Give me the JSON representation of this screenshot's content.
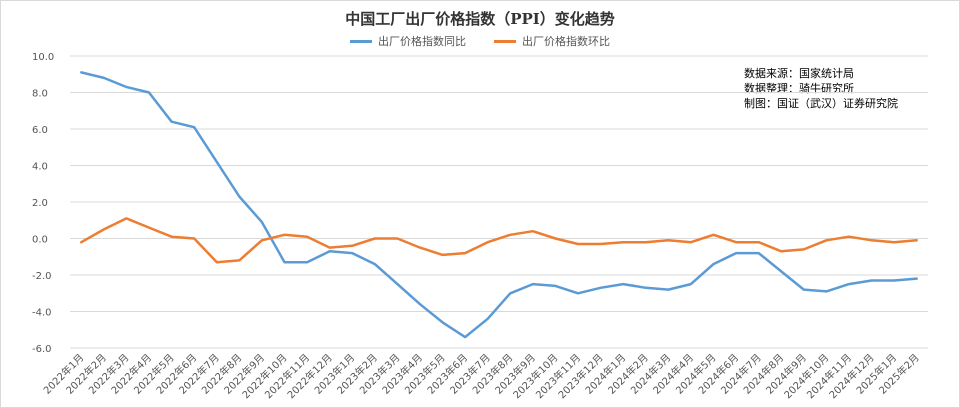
{
  "chart_data": {
    "type": "line",
    "title": "中国工厂出厂价格指数（PPI）变化趋势",
    "xlabel": "",
    "ylabel": "",
    "ylim": [
      -6.0,
      10.0
    ],
    "yticks": [
      "10.0",
      "8.0",
      "6.0",
      "4.0",
      "2.0",
      "0.0",
      "-2.0",
      "-4.0",
      "-6.0"
    ],
    "grid": true,
    "legend": "top-center",
    "categories": [
      "2022年1月",
      "2022年2月",
      "2022年3月",
      "2022年4月",
      "2022年5月",
      "2022年6月",
      "2022年7月",
      "2022年8月",
      "2022年9月",
      "2022年10月",
      "2022年11月",
      "2022年12月",
      "2023年1月",
      "2023年2月",
      "2023年3月",
      "2023年4月",
      "2023年5月",
      "2023年6月",
      "2023年7月",
      "2023年8月",
      "2023年9月",
      "2023年10月",
      "2023年11月",
      "2023年12月",
      "2024年1月",
      "2024年2月",
      "2024年3月",
      "2024年4月",
      "2024年5月",
      "2024年6月",
      "2024年7月",
      "2024年8月",
      "2024年9月",
      "2024年10月",
      "2024年11月",
      "2024年12月",
      "2025年1月",
      "2025年2月"
    ],
    "series": [
      {
        "name": "出厂价格指数同比",
        "color": "#5b9bd5",
        "values": [
          9.1,
          8.8,
          8.3,
          8.0,
          6.4,
          6.1,
          4.2,
          2.3,
          0.9,
          -1.3,
          -1.3,
          -0.7,
          -0.8,
          -1.4,
          -2.5,
          -3.6,
          -4.6,
          -5.4,
          -4.4,
          -3.0,
          -2.5,
          -2.6,
          -3.0,
          -2.7,
          -2.5,
          -2.7,
          -2.8,
          -2.5,
          -1.4,
          -0.8,
          -0.8,
          -1.8,
          -2.8,
          -2.9,
          -2.5,
          -2.3,
          -2.3,
          -2.2
        ]
      },
      {
        "name": "出厂价格指数环比",
        "color": "#ed7d31",
        "values": [
          -0.2,
          0.5,
          1.1,
          0.6,
          0.1,
          0.0,
          -1.3,
          -1.2,
          -0.1,
          0.2,
          0.1,
          -0.5,
          -0.4,
          0.0,
          0.0,
          -0.5,
          -0.9,
          -0.8,
          -0.2,
          0.2,
          0.4,
          0.0,
          -0.3,
          -0.3,
          -0.2,
          -0.2,
          -0.1,
          -0.2,
          0.2,
          -0.2,
          -0.2,
          -0.7,
          -0.6,
          -0.1,
          0.1,
          -0.1,
          -0.2,
          -0.1
        ]
      }
    ]
  },
  "notes": {
    "line1": "数据来源：国家统计局",
    "line2": "数据整理：骑牛研究所",
    "line3": "制图：国证（武汉）证券研究院"
  }
}
